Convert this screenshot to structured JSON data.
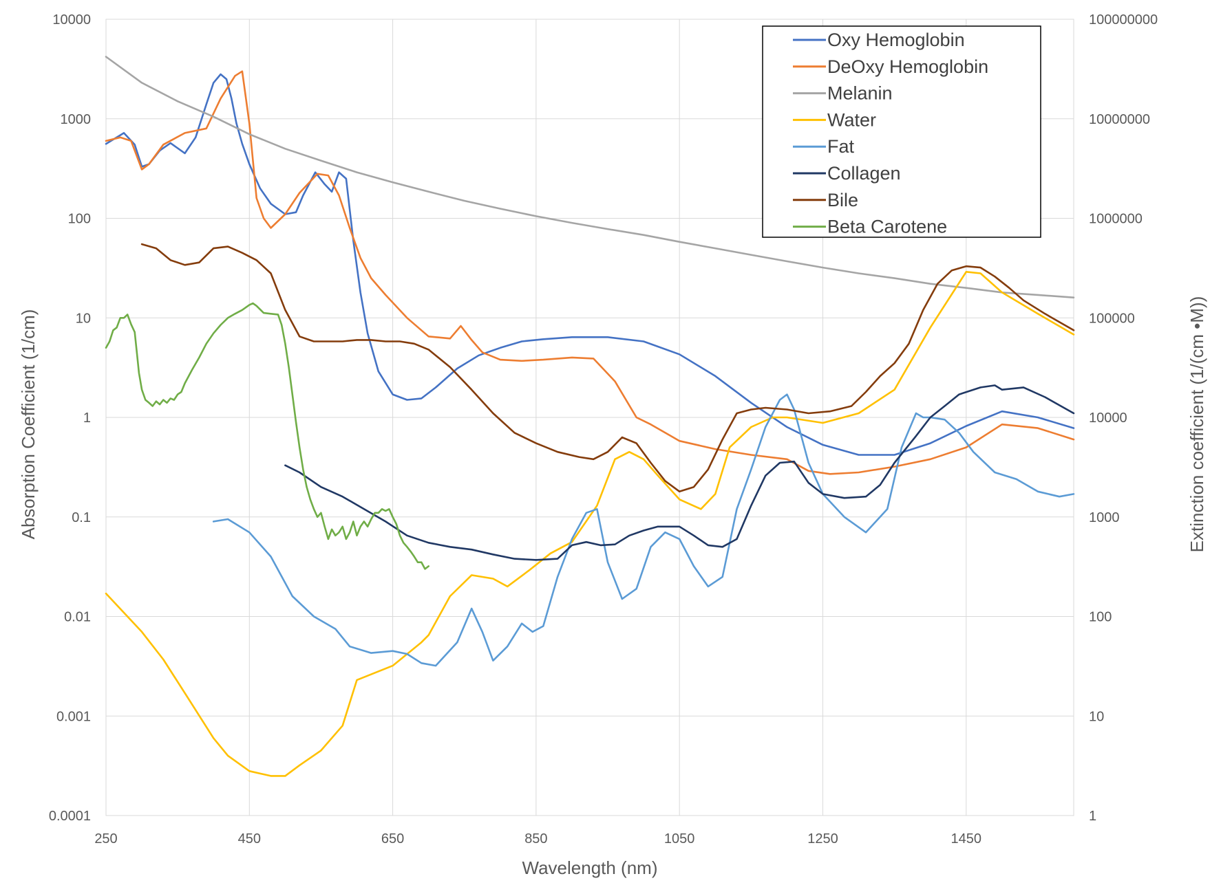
{
  "chart_data": {
    "type": "line",
    "title": "",
    "xlabel": "Wavelength (nm)",
    "ylabel": "Absorption Coefficient (1/cm)",
    "y2label": "Extinction coefficient (1/(cm •M))",
    "xlim": [
      250,
      1600
    ],
    "ylim": [
      0.0001,
      10000
    ],
    "y2lim": [
      1,
      100000000
    ],
    "yscale": "log",
    "y2scale": "log",
    "x_ticks": [
      "250",
      "450",
      "650",
      "850",
      "1050",
      "1250",
      "1450"
    ],
    "x_tick_values": [
      250,
      450,
      650,
      850,
      1050,
      1250,
      1450
    ],
    "y_ticks": [
      "0.0001",
      "0.001",
      "0.01",
      "0.1",
      "1",
      "10",
      "100",
      "1000",
      "10000"
    ],
    "y_tick_values": [
      0.0001,
      0.001,
      0.01,
      0.1,
      1,
      10,
      100,
      1000,
      10000
    ],
    "y2_ticks": [
      "1",
      "10",
      "100",
      "1000",
      "10000",
      "100000",
      "1000000",
      "10000000",
      "100000000"
    ],
    "y2_tick_values": [
      1,
      10,
      100,
      1000,
      10000,
      100000,
      1000000,
      10000000,
      100000000
    ],
    "grid": true,
    "legend_position": "top-right",
    "series": [
      {
        "name": "Oxy Hemoglobin",
        "color": "#4472c4",
        "axis": "left",
        "x": [
          250,
          265,
          275,
          290,
          300,
          310,
          325,
          340,
          360,
          375,
          390,
          400,
          410,
          418,
          425,
          432,
          440,
          450,
          465,
          480,
          500,
          515,
          525,
          542,
          555,
          565,
          575,
          585,
          595,
          605,
          615,
          630,
          650,
          670,
          690,
          710,
          740,
          770,
          800,
          830,
          860,
          900,
          950,
          1000,
          1050,
          1100,
          1150,
          1200,
          1250,
          1300,
          1350,
          1400,
          1450,
          1500,
          1550,
          1600
        ],
        "y": [
          560,
          650,
          720,
          550,
          330,
          350,
          480,
          570,
          450,
          650,
          1400,
          2300,
          2800,
          2500,
          1600,
          900,
          560,
          350,
          200,
          140,
          110,
          115,
          170,
          290,
          220,
          185,
          290,
          250,
          60,
          18,
          7,
          2.9,
          1.7,
          1.5,
          1.55,
          2.0,
          3.1,
          4.2,
          5.0,
          5.8,
          6.1,
          6.4,
          6.4,
          5.8,
          4.3,
          2.6,
          1.4,
          0.8,
          0.53,
          0.42,
          0.42,
          0.55,
          0.82,
          1.15,
          1.0,
          0.78
        ]
      },
      {
        "name": "DeOxy Hemoglobin",
        "color": "#ed7d31",
        "axis": "left",
        "x": [
          250,
          270,
          285,
          300,
          310,
          330,
          360,
          390,
          410,
          430,
          440,
          450,
          460,
          470,
          480,
          500,
          520,
          545,
          560,
          575,
          590,
          605,
          620,
          640,
          670,
          700,
          730,
          745,
          760,
          775,
          800,
          830,
          860,
          900,
          930,
          960,
          990,
          1010,
          1050,
          1100,
          1150,
          1200,
          1230,
          1260,
          1300,
          1350,
          1400,
          1450,
          1500,
          1550,
          1600
        ],
        "y": [
          600,
          650,
          600,
          310,
          350,
          550,
          720,
          800,
          1600,
          2700,
          3000,
          900,
          160,
          100,
          80,
          110,
          180,
          280,
          270,
          170,
          80,
          40,
          25,
          17,
          10,
          6.5,
          6.2,
          8.3,
          6.0,
          4.5,
          3.8,
          3.7,
          3.8,
          4.0,
          3.9,
          2.3,
          1.0,
          0.85,
          0.58,
          0.48,
          0.42,
          0.38,
          0.29,
          0.27,
          0.28,
          0.32,
          0.38,
          0.5,
          0.85,
          0.78,
          0.6
        ]
      },
      {
        "name": "Melanin",
        "color": "#a5a5a5",
        "axis": "left",
        "x": [
          250,
          300,
          350,
          400,
          450,
          500,
          550,
          600,
          650,
          700,
          750,
          800,
          850,
          900,
          950,
          1000,
          1050,
          1100,
          1150,
          1200,
          1250,
          1300,
          1350,
          1400,
          1450,
          1500,
          1550,
          1600
        ],
        "y": [
          4200,
          2300,
          1500,
          1050,
          700,
          500,
          380,
          290,
          230,
          185,
          150,
          125,
          105,
          90,
          78,
          68,
          58,
          50,
          43,
          37,
          32,
          28,
          25,
          22,
          20,
          18,
          17,
          16
        ]
      },
      {
        "name": "Water",
        "color": "#ffc000",
        "axis": "left",
        "x": [
          250,
          300,
          330,
          360,
          400,
          420,
          450,
          480,
          500,
          520,
          550,
          580,
          600,
          650,
          690,
          700,
          730,
          760,
          790,
          810,
          840,
          870,
          900,
          935,
          960,
          980,
          1000,
          1020,
          1050,
          1080,
          1100,
          1120,
          1150,
          1180,
          1200,
          1250,
          1300,
          1350,
          1400,
          1450,
          1470,
          1500,
          1550,
          1600
        ],
        "y": [
          0.017,
          0.007,
          0.0037,
          0.0017,
          0.0006,
          0.0004,
          0.00028,
          0.00025,
          0.00025,
          0.00032,
          0.00045,
          0.0008,
          0.0023,
          0.0032,
          0.0055,
          0.0065,
          0.016,
          0.026,
          0.024,
          0.02,
          0.029,
          0.043,
          0.056,
          0.13,
          0.38,
          0.45,
          0.38,
          0.26,
          0.15,
          0.12,
          0.17,
          0.5,
          0.8,
          1.0,
          1.0,
          0.88,
          1.1,
          1.9,
          8.0,
          29,
          28,
          18,
          11,
          6.8
        ]
      },
      {
        "name": "Fat",
        "color": "#5b9bd5",
        "axis": "left",
        "x": [
          400,
          420,
          450,
          480,
          510,
          540,
          570,
          590,
          620,
          650,
          670,
          690,
          710,
          740,
          760,
          775,
          790,
          810,
          830,
          845,
          860,
          880,
          900,
          920,
          935,
          950,
          970,
          990,
          1010,
          1030,
          1050,
          1070,
          1090,
          1110,
          1130,
          1150,
          1170,
          1190,
          1200,
          1210,
          1230,
          1250,
          1280,
          1310,
          1340,
          1360,
          1380,
          1390,
          1400,
          1420,
          1440,
          1460,
          1490,
          1520,
          1550,
          1580,
          1600
        ],
        "y": [
          0.09,
          0.095,
          0.07,
          0.04,
          0.016,
          0.01,
          0.0075,
          0.005,
          0.0043,
          0.0045,
          0.0042,
          0.0034,
          0.0032,
          0.0055,
          0.012,
          0.007,
          0.0036,
          0.005,
          0.0085,
          0.007,
          0.008,
          0.025,
          0.06,
          0.11,
          0.12,
          0.035,
          0.015,
          0.019,
          0.05,
          0.07,
          0.06,
          0.032,
          0.02,
          0.025,
          0.12,
          0.3,
          0.8,
          1.5,
          1.7,
          1.2,
          0.35,
          0.17,
          0.1,
          0.07,
          0.12,
          0.5,
          1.1,
          1.0,
          1.0,
          0.95,
          0.7,
          0.45,
          0.28,
          0.24,
          0.18,
          0.16,
          0.17
        ]
      },
      {
        "name": "Collagen",
        "color": "#203864",
        "axis": "left",
        "x": [
          500,
          520,
          550,
          580,
          610,
          640,
          670,
          700,
          730,
          760,
          790,
          820,
          850,
          880,
          900,
          920,
          940,
          960,
          980,
          1000,
          1020,
          1050,
          1070,
          1090,
          1110,
          1130,
          1150,
          1170,
          1190,
          1210,
          1230,
          1250,
          1280,
          1310,
          1330,
          1350,
          1380,
          1400,
          1420,
          1440,
          1470,
          1490,
          1500,
          1530,
          1560,
          1600
        ],
        "y": [
          0.33,
          0.28,
          0.2,
          0.16,
          0.12,
          0.09,
          0.065,
          0.055,
          0.05,
          0.047,
          0.042,
          0.038,
          0.037,
          0.038,
          0.052,
          0.056,
          0.052,
          0.053,
          0.065,
          0.073,
          0.08,
          0.08,
          0.065,
          0.052,
          0.05,
          0.06,
          0.13,
          0.26,
          0.35,
          0.36,
          0.22,
          0.17,
          0.155,
          0.16,
          0.21,
          0.35,
          0.65,
          1.0,
          1.3,
          1.7,
          2.0,
          2.1,
          1.9,
          2.0,
          1.6,
          1.1
        ]
      },
      {
        "name": "Bile",
        "color": "#843c0c",
        "axis": "left",
        "x": [
          300,
          320,
          340,
          360,
          380,
          400,
          420,
          440,
          460,
          480,
          500,
          520,
          540,
          560,
          580,
          600,
          620,
          640,
          660,
          680,
          700,
          730,
          760,
          790,
          820,
          850,
          880,
          910,
          930,
          950,
          970,
          990,
          1010,
          1030,
          1050,
          1070,
          1090,
          1110,
          1130,
          1150,
          1170,
          1200,
          1230,
          1260,
          1290,
          1310,
          1330,
          1350,
          1370,
          1390,
          1410,
          1430,
          1450,
          1470,
          1490,
          1510,
          1530,
          1560,
          1600
        ],
        "y": [
          55,
          50,
          38,
          34,
          36,
          50,
          52,
          45,
          38,
          28,
          12,
          6.5,
          5.8,
          5.8,
          5.8,
          6.0,
          6.0,
          5.8,
          5.8,
          5.5,
          4.8,
          3.2,
          1.9,
          1.1,
          0.7,
          0.55,
          0.45,
          0.4,
          0.38,
          0.45,
          0.63,
          0.55,
          0.35,
          0.23,
          0.18,
          0.2,
          0.3,
          0.6,
          1.1,
          1.2,
          1.25,
          1.2,
          1.1,
          1.15,
          1.3,
          1.8,
          2.6,
          3.5,
          5.5,
          12,
          22,
          30,
          33,
          32,
          26,
          20,
          15,
          11,
          7.5
        ]
      },
      {
        "name": "Beta Carotene",
        "color": "#70ad47",
        "axis": "left",
        "x": [
          250,
          255,
          260,
          265,
          270,
          275,
          280,
          285,
          290,
          293,
          296,
          300,
          305,
          310,
          315,
          320,
          325,
          330,
          335,
          340,
          345,
          350,
          355,
          360,
          370,
          380,
          390,
          400,
          410,
          420,
          430,
          440,
          450,
          455,
          460,
          470,
          480,
          490,
          495,
          500,
          505,
          510,
          515,
          520,
          525,
          530,
          535,
          540,
          545,
          550,
          555,
          560,
          565,
          570,
          575,
          580,
          585,
          590,
          595,
          600,
          605,
          610,
          615,
          620,
          625,
          630,
          635,
          640,
          645,
          650,
          655,
          660,
          665,
          670,
          675,
          680,
          685,
          690,
          695,
          700
        ],
        "y": [
          5.0,
          5.8,
          7.5,
          8.0,
          10.0,
          10.0,
          10.8,
          8.6,
          7.2,
          4.5,
          2.8,
          1.9,
          1.5,
          1.4,
          1.3,
          1.45,
          1.35,
          1.5,
          1.4,
          1.55,
          1.5,
          1.7,
          1.8,
          2.2,
          3.0,
          4.0,
          5.5,
          7.0,
          8.5,
          10.0,
          11.0,
          12.0,
          13.5,
          14.0,
          13.2,
          11.2,
          11.0,
          10.8,
          8.5,
          5.5,
          3.2,
          1.7,
          0.9,
          0.5,
          0.3,
          0.2,
          0.15,
          0.12,
          0.1,
          0.11,
          0.08,
          0.06,
          0.075,
          0.065,
          0.07,
          0.08,
          0.06,
          0.07,
          0.09,
          0.065,
          0.08,
          0.09,
          0.08,
          0.095,
          0.11,
          0.11,
          0.12,
          0.115,
          0.12,
          0.1,
          0.085,
          0.065,
          0.055,
          0.05,
          0.045,
          0.04,
          0.035,
          0.035,
          0.03,
          0.032
        ]
      }
    ]
  }
}
